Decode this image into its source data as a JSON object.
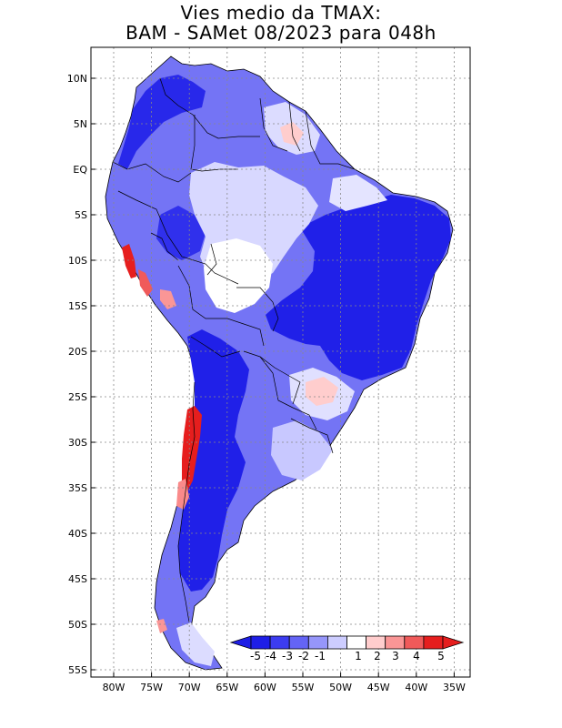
{
  "title": {
    "line1": "Vies medio da TMAX:",
    "line2": "BAM - SAMet 08/2023  para 048h"
  },
  "axes": {
    "lat_labels": [
      "10N",
      "5N",
      "EQ",
      "5S",
      "10S",
      "15S",
      "20S",
      "25S",
      "30S",
      "35S",
      "40S",
      "45S",
      "50S",
      "55S"
    ],
    "lon_labels": [
      "80W",
      "75W",
      "70W",
      "65W",
      "60W",
      "55W",
      "50W",
      "45W",
      "40W",
      "35W"
    ],
    "lat_range": [
      -56,
      13
    ],
    "lon_range": [
      -83,
      -34
    ],
    "grid": true
  },
  "colorbar": {
    "labels": [
      "-5",
      "-4",
      "-3",
      "-2",
      "-1",
      "1",
      "2",
      "3",
      "4",
      "5"
    ],
    "colors": [
      "#1e1ee6",
      "#3c3cf0",
      "#6464f5",
      "#9696fa",
      "#cdcdff",
      "#ffffff",
      "#ffcdcd",
      "#fa9696",
      "#f05a5a",
      "#e61e1e"
    ],
    "extend": "both"
  },
  "chart_data": {
    "type": "map",
    "variable": "TMAX bias",
    "title": "Vies medio da TMAX:",
    "subtitle": "BAM - SAMet 08/2023  para 048h"
  }
}
